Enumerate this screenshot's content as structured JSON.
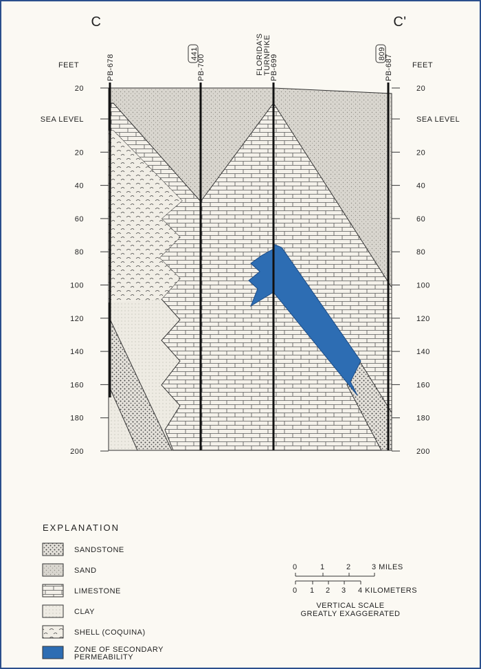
{
  "section": {
    "left_label": "C",
    "right_label": "C'"
  },
  "axes": {
    "left_title": "FEET",
    "right_title": "FEET",
    "ticks": [
      "20",
      "SEA LEVEL",
      "20",
      "40",
      "60",
      "80",
      "100",
      "120",
      "140",
      "160",
      "180",
      "200"
    ]
  },
  "wells": [
    {
      "name": "PB-678"
    },
    {
      "name": "PB-700",
      "road": [
        "441"
      ]
    },
    {
      "name": "PB-699",
      "road": [
        "FLORIDA'S",
        "TURNPIKE"
      ]
    },
    {
      "name": "PB-687",
      "road": [
        "809"
      ]
    }
  ],
  "explanation": {
    "title": "EXPLANATION",
    "items": [
      [
        "SANDSTONE"
      ],
      [
        "SAND"
      ],
      [
        "LIMESTONE"
      ],
      [
        "CLAY"
      ],
      [
        "SHELL (COQUINA)"
      ],
      [
        "ZONE OF SECONDARY",
        "PERMEABILITY"
      ]
    ]
  },
  "scale": {
    "miles": [
      "0",
      "1",
      "2",
      "3 MILES"
    ],
    "kilometers": [
      "0",
      "1",
      "2",
      "3",
      "4 KILOMETERS"
    ],
    "note": [
      "VERTICAL SCALE",
      "GREATLY EXAGGERATED"
    ]
  }
}
